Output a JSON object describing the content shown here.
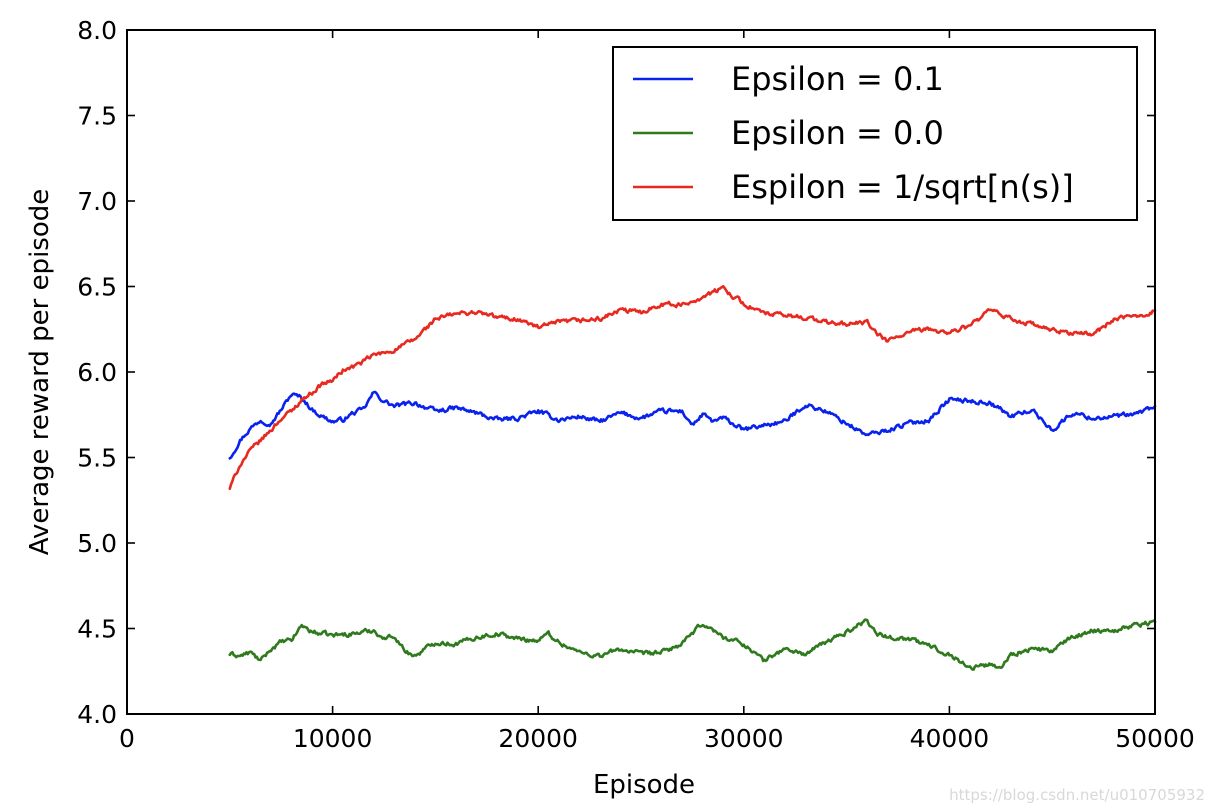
{
  "chart_data": {
    "type": "line",
    "title": "",
    "xlabel": "Episode",
    "ylabel": "Average reward per episode",
    "xlim": [
      0,
      50000
    ],
    "ylim": [
      4.0,
      8.0
    ],
    "xticks": [
      0,
      10000,
      20000,
      30000,
      40000,
      50000
    ],
    "xtick_labels": [
      "0",
      "10000",
      "20000",
      "30000",
      "40000",
      "50000"
    ],
    "yticks": [
      4.0,
      4.5,
      5.0,
      5.5,
      6.0,
      6.5,
      7.0,
      7.5,
      8.0
    ],
    "ytick_labels": [
      "4.0",
      "4.5",
      "5.0",
      "5.5",
      "6.0",
      "6.5",
      "7.0",
      "7.5",
      "8.0"
    ],
    "grid": false,
    "legend_position": "top-right",
    "series": [
      {
        "name": "Epsilon = 0.1",
        "color": "#0a22ee",
        "x": [
          5000,
          5500,
          6000,
          6500,
          7000,
          7500,
          8000,
          8500,
          9000,
          9500,
          10000,
          10500,
          11000,
          11500,
          12000,
          12500,
          13000,
          14000,
          15000,
          16000,
          17000,
          18000,
          19000,
          20000,
          21000,
          22000,
          23000,
          24000,
          25000,
          26000,
          27000,
          27500,
          28000,
          28500,
          29000,
          30000,
          31000,
          32000,
          33000,
          34000,
          35000,
          36000,
          37000,
          38000,
          39000,
          40000,
          41000,
          42000,
          43000,
          44000,
          45000,
          46000,
          47000,
          48000,
          49000,
          50000
        ],
        "y": [
          5.5,
          5.6,
          5.67,
          5.72,
          5.7,
          5.78,
          5.87,
          5.85,
          5.78,
          5.74,
          5.71,
          5.72,
          5.76,
          5.78,
          5.88,
          5.83,
          5.8,
          5.82,
          5.77,
          5.79,
          5.76,
          5.72,
          5.73,
          5.77,
          5.72,
          5.74,
          5.71,
          5.76,
          5.73,
          5.77,
          5.77,
          5.69,
          5.75,
          5.71,
          5.73,
          5.66,
          5.69,
          5.71,
          5.81,
          5.77,
          5.7,
          5.63,
          5.66,
          5.7,
          5.72,
          5.84,
          5.83,
          5.82,
          5.74,
          5.78,
          5.66,
          5.76,
          5.73,
          5.74,
          5.75,
          5.8
        ]
      },
      {
        "name": "Epsilon = 0.0",
        "color": "#2e7a1c",
        "x": [
          5000,
          5500,
          6000,
          6500,
          7000,
          7500,
          8000,
          8500,
          9000,
          10000,
          11000,
          12000,
          12500,
          13000,
          13500,
          14000,
          15000,
          16000,
          17000,
          18000,
          19000,
          20000,
          20500,
          21000,
          22000,
          23000,
          24000,
          25000,
          26000,
          27000,
          28000,
          29000,
          30000,
          31000,
          31500,
          32000,
          33000,
          34000,
          35000,
          36000,
          36500,
          37000,
          38000,
          39000,
          40000,
          41000,
          42000,
          42500,
          43000,
          44000,
          45000,
          46000,
          47000,
          48000,
          49000,
          50000
        ],
        "y": [
          4.35,
          4.34,
          4.36,
          4.31,
          4.38,
          4.42,
          4.43,
          4.52,
          4.48,
          4.46,
          4.47,
          4.49,
          4.44,
          4.46,
          4.37,
          4.34,
          4.42,
          4.41,
          4.45,
          4.47,
          4.44,
          4.43,
          4.47,
          4.42,
          4.36,
          4.34,
          4.38,
          4.35,
          4.36,
          4.41,
          4.53,
          4.45,
          4.41,
          4.31,
          4.35,
          4.38,
          4.35,
          4.42,
          4.48,
          4.55,
          4.47,
          4.45,
          4.44,
          4.4,
          4.35,
          4.27,
          4.29,
          4.27,
          4.35,
          4.38,
          4.37,
          4.45,
          4.49,
          4.49,
          4.52,
          4.54
        ]
      },
      {
        "name": "Espilon = 1/sqrt[n(s)]",
        "color": "#e8291f",
        "x": [
          5000,
          5500,
          6000,
          6500,
          7000,
          7500,
          8000,
          8500,
          9000,
          9500,
          10000,
          10500,
          11000,
          11500,
          12000,
          12500,
          13000,
          14000,
          15000,
          16000,
          17000,
          18000,
          19000,
          20000,
          21000,
          22000,
          23000,
          24000,
          25000,
          26000,
          27000,
          28000,
          29000,
          30000,
          31000,
          32000,
          33000,
          34000,
          35000,
          36000,
          36500,
          37000,
          38000,
          39000,
          40000,
          41000,
          42000,
          43000,
          44000,
          45000,
          46000,
          47000,
          48000,
          49000,
          50000
        ],
        "y": [
          5.32,
          5.46,
          5.54,
          5.6,
          5.66,
          5.73,
          5.77,
          5.84,
          5.88,
          5.93,
          5.95,
          6.01,
          6.03,
          6.06,
          6.1,
          6.11,
          6.13,
          6.19,
          6.31,
          6.34,
          6.35,
          6.32,
          6.31,
          6.26,
          6.29,
          6.3,
          6.31,
          6.36,
          6.35,
          6.4,
          6.39,
          6.44,
          6.49,
          6.4,
          6.34,
          6.33,
          6.32,
          6.29,
          6.28,
          6.29,
          6.22,
          6.18,
          6.23,
          6.25,
          6.23,
          6.27,
          6.36,
          6.31,
          6.28,
          6.24,
          6.23,
          6.22,
          6.31,
          6.32,
          6.36
        ]
      }
    ],
    "watermark": "https://blog.csdn.net/u010705932"
  }
}
